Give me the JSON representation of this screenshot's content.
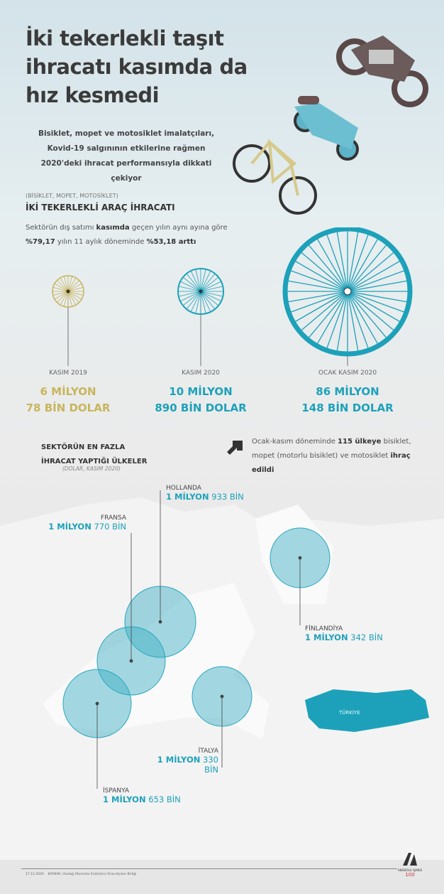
{
  "header": {
    "title": "İki tekerlekli taşıt ihracatı kasımda da hız kesmedi",
    "subtitle": "Bisiklet, mopet ve motosiklet imalatçıları, Kovid-19 salgınının etkilerine rağmen 2020'deki ihracat performansıyla dikkati çekiyor"
  },
  "section": {
    "kicker": "(BİSİKLET, MOPET, MOTOSİKLET)",
    "title": "İKİ TEKERLEKLİ ARAÇ İHRACATI",
    "text_1": "Sektörün dış satımı ",
    "text_bold_1": "kasımda",
    "text_2": " geçen yılın aynı ayına göre ",
    "text_bold_2": "%79,17",
    "text_3": " yılın 11 aylık döneminde ",
    "text_bold_3": "%53,18 arttı"
  },
  "wheels": [
    {
      "label": "KASIM 2019",
      "line1": "6 MİLYON",
      "line2": "78 BİN DOLAR",
      "color": "#c8b55c"
    },
    {
      "label": "KASIM 2020",
      "line1": "10 MİLYON",
      "line2": "890 BİN DOLAR",
      "color": "#1da1ba"
    },
    {
      "label": "OCAK KASIM 2020",
      "line1": "86 MİLYON",
      "line2": "148 BİN DOLAR",
      "color": "#1da1ba"
    }
  ],
  "countries_section": {
    "title_1": "SEKTÖRÜN EN FAZLA",
    "title_2": "İHRACAT YAPTIĞI ÜLKELER",
    "note": "(DOLAR, KASIM 2020)"
  },
  "export_note": {
    "t1": "Ocak-kasım döneminde ",
    "b1": "115 ülkeye",
    "t2": " bisiklet, mopet (motorlu bisiklet) ve motosiklet ",
    "b2": "ihraç edildi"
  },
  "countries": [
    {
      "name": "HOLLANDA",
      "mil": "1 MİLYON",
      "bin": "933 BİN"
    },
    {
      "name": "FRANSA",
      "mil": "1 MİLYON",
      "bin": "770 BİN"
    },
    {
      "name": "FİNLANDİYA",
      "mil": "1 MİLYON",
      "bin": "342 BİN"
    },
    {
      "name": "İTALYA",
      "mil": "1 MİLYON",
      "bin": "330 BİN"
    },
    {
      "name": "İSPANYA",
      "mil": "1 MİLYON",
      "bin": "653 BİN"
    }
  ],
  "map": {
    "turkey_label": "TÜRKİYE"
  },
  "footer": {
    "date": "17.12.2020",
    "source": "KAYNAK: Uludağ Otomotiv Endüstrisi İhracatçıları Birliği",
    "logo_text": "ANADOLU AJANSI",
    "logo_badge": "100"
  },
  "colors": {
    "accent": "#1da1ba",
    "gold": "#c8b55c"
  }
}
